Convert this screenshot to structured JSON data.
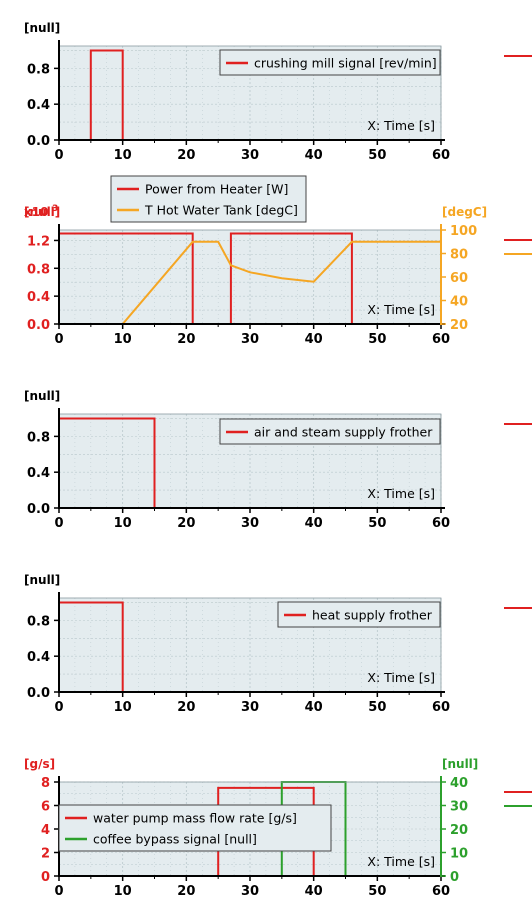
{
  "colors": {
    "red": "#e02020",
    "orange": "#f5a623",
    "green": "#2ca02c",
    "plot_bg": "#e4ecef",
    "grid": "#b9c7cc",
    "axis": "#000000",
    "legend_bg": "#e4ecef"
  },
  "chart_data": [
    {
      "type": "line",
      "xlabel": "X: Time [s]",
      "y_unit_label": "[null]",
      "xlim": [
        0,
        60
      ],
      "xticks": [
        0,
        10,
        20,
        30,
        40,
        50,
        60
      ],
      "ylim": [
        0,
        1.05
      ],
      "yticks": [
        0.0,
        0.4,
        0.8
      ],
      "yticklabels": [
        "0.0",
        "0.4",
        "0.8"
      ],
      "legend_placement": "top-right",
      "series": [
        {
          "name": "crushing mill signal [rev/min]",
          "color": "#e02020",
          "axis": "left",
          "x": [
            0,
            5,
            5,
            10,
            10,
            60
          ],
          "y": [
            0,
            0,
            1,
            1,
            0,
            0
          ]
        }
      ]
    },
    {
      "type": "line",
      "xlabel": "X: Time [s]",
      "y_unit_label": "[null]",
      "y_multiplier_label": "x10",
      "y_multiplier_exp": "3",
      "y2_unit_label": "[degC]",
      "xlim": [
        0,
        60
      ],
      "xticks": [
        0,
        10,
        20,
        30,
        40,
        50,
        60
      ],
      "ylim": [
        0,
        1.35
      ],
      "yticks": [
        0.0,
        0.4,
        0.8,
        1.2
      ],
      "yticklabels": [
        "0.0",
        "0.4",
        "0.8",
        "1.2"
      ],
      "y2lim": [
        20,
        100
      ],
      "y2ticks": [
        20,
        40,
        60,
        80,
        100
      ],
      "y2ticklabels": [
        "20",
        "40",
        "60",
        "80",
        "100"
      ],
      "legend_placement": "top-left",
      "series": [
        {
          "name": "Power from Heater [W]",
          "color": "#e02020",
          "axis": "left",
          "x": [
            0,
            21,
            21,
            27,
            27,
            46,
            46,
            60
          ],
          "y": [
            1.3,
            1.3,
            0,
            0,
            1.3,
            1.3,
            0,
            0
          ]
        },
        {
          "name": "T Hot Water Tank [degC]",
          "color": "#f5a623",
          "axis": "right",
          "x": [
            0,
            10,
            21,
            25,
            27,
            30,
            35,
            40,
            46,
            60
          ],
          "y": [
            20,
            20,
            90,
            90,
            70,
            64,
            59,
            56,
            90,
            90
          ]
        }
      ]
    },
    {
      "type": "line",
      "xlabel": "X: Time [s]",
      "y_unit_label": "[null]",
      "xlim": [
        0,
        60
      ],
      "xticks": [
        0,
        10,
        20,
        30,
        40,
        50,
        60
      ],
      "ylim": [
        0,
        1.05
      ],
      "yticks": [
        0.0,
        0.4,
        0.8
      ],
      "yticklabels": [
        "0.0",
        "0.4",
        "0.8"
      ],
      "legend_placement": "top-right",
      "series": [
        {
          "name": "air and steam supply frother",
          "color": "#e02020",
          "axis": "left",
          "x": [
            0,
            15,
            15,
            60
          ],
          "y": [
            1,
            1,
            0,
            0
          ]
        }
      ]
    },
    {
      "type": "line",
      "xlabel": "X: Time [s]",
      "y_unit_label": "[null]",
      "xlim": [
        0,
        60
      ],
      "xticks": [
        0,
        10,
        20,
        30,
        40,
        50,
        60
      ],
      "ylim": [
        0,
        1.05
      ],
      "yticks": [
        0.0,
        0.4,
        0.8
      ],
      "yticklabels": [
        "0.0",
        "0.4",
        "0.8"
      ],
      "legend_placement": "top-right",
      "series": [
        {
          "name": "heat supply frother",
          "color": "#e02020",
          "axis": "left",
          "x": [
            0,
            10,
            10,
            60
          ],
          "y": [
            1,
            1,
            0,
            0
          ]
        }
      ]
    },
    {
      "type": "line",
      "xlabel": "X: Time [s]",
      "y_unit_label": "[g/s]",
      "y2_unit_label": "[null]",
      "xlim": [
        0,
        60
      ],
      "xticks": [
        0,
        10,
        20,
        30,
        40,
        50,
        60
      ],
      "ylim": [
        0,
        8
      ],
      "yticks": [
        0,
        2,
        4,
        6,
        8
      ],
      "yticklabels": [
        "0",
        "2",
        "4",
        "6",
        "8"
      ],
      "y2lim": [
        0,
        40
      ],
      "y2ticks": [
        0,
        10,
        20,
        30,
        40
      ],
      "y2ticklabels": [
        "0",
        "10",
        "20",
        "30",
        "40"
      ],
      "legend_placement": "bottom-left",
      "series": [
        {
          "name": "water pump mass flow rate [g/s]",
          "color": "#e02020",
          "axis": "left",
          "x": [
            0,
            25,
            25,
            40,
            40,
            60
          ],
          "y": [
            0,
            0,
            7.5,
            7.5,
            0,
            0
          ]
        },
        {
          "name": "coffee bypass signal [null]",
          "color": "#2ca02c",
          "axis": "right",
          "x": [
            0,
            35,
            35,
            45,
            45,
            60
          ],
          "y": [
            0,
            0,
            40,
            40,
            0,
            0
          ]
        }
      ]
    }
  ]
}
